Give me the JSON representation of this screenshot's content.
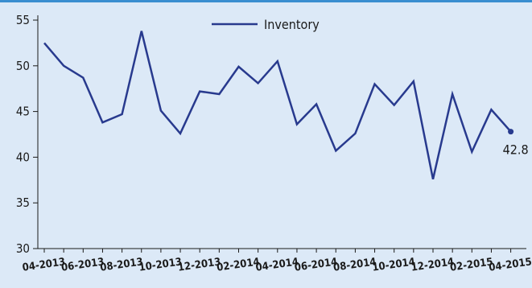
{
  "chart_data": {
    "type": "line",
    "title": "",
    "xlabel": "",
    "ylabel": "",
    "ylim": [
      30,
      55
    ],
    "yticks": [
      30,
      35,
      40,
      45,
      50,
      55
    ],
    "grid": false,
    "legend": {
      "placement": "top-center"
    },
    "x_tick_labels": [
      "04-2013",
      "06-2013",
      "08-2013",
      "10-2013",
      "12-2013",
      "02-2014",
      "04-2014",
      "06-2014",
      "08-2014",
      "10-2014",
      "12-2014",
      "02-2015",
      "04-2015"
    ],
    "x": [
      "04-2013",
      "05-2013",
      "06-2013",
      "07-2013",
      "08-2013",
      "09-2013",
      "10-2013",
      "11-2013",
      "12-2013",
      "01-2014",
      "02-2014",
      "03-2014",
      "04-2014",
      "05-2014",
      "06-2014",
      "07-2014",
      "08-2014",
      "09-2014",
      "10-2014",
      "11-2014",
      "12-2014",
      "01-2015",
      "02-2015",
      "03-2015",
      "04-2015"
    ],
    "series": [
      {
        "name": "Inventory",
        "color": "#283a8e",
        "values": [
          52.5,
          50.0,
          48.7,
          43.8,
          44.7,
          53.8,
          45.1,
          42.6,
          47.2,
          46.9,
          49.9,
          48.1,
          50.5,
          43.6,
          45.8,
          40.7,
          42.6,
          48.0,
          45.7,
          48.3,
          37.6,
          46.9,
          40.6,
          45.2,
          42.8
        ]
      }
    ],
    "end_label": "42.8"
  }
}
